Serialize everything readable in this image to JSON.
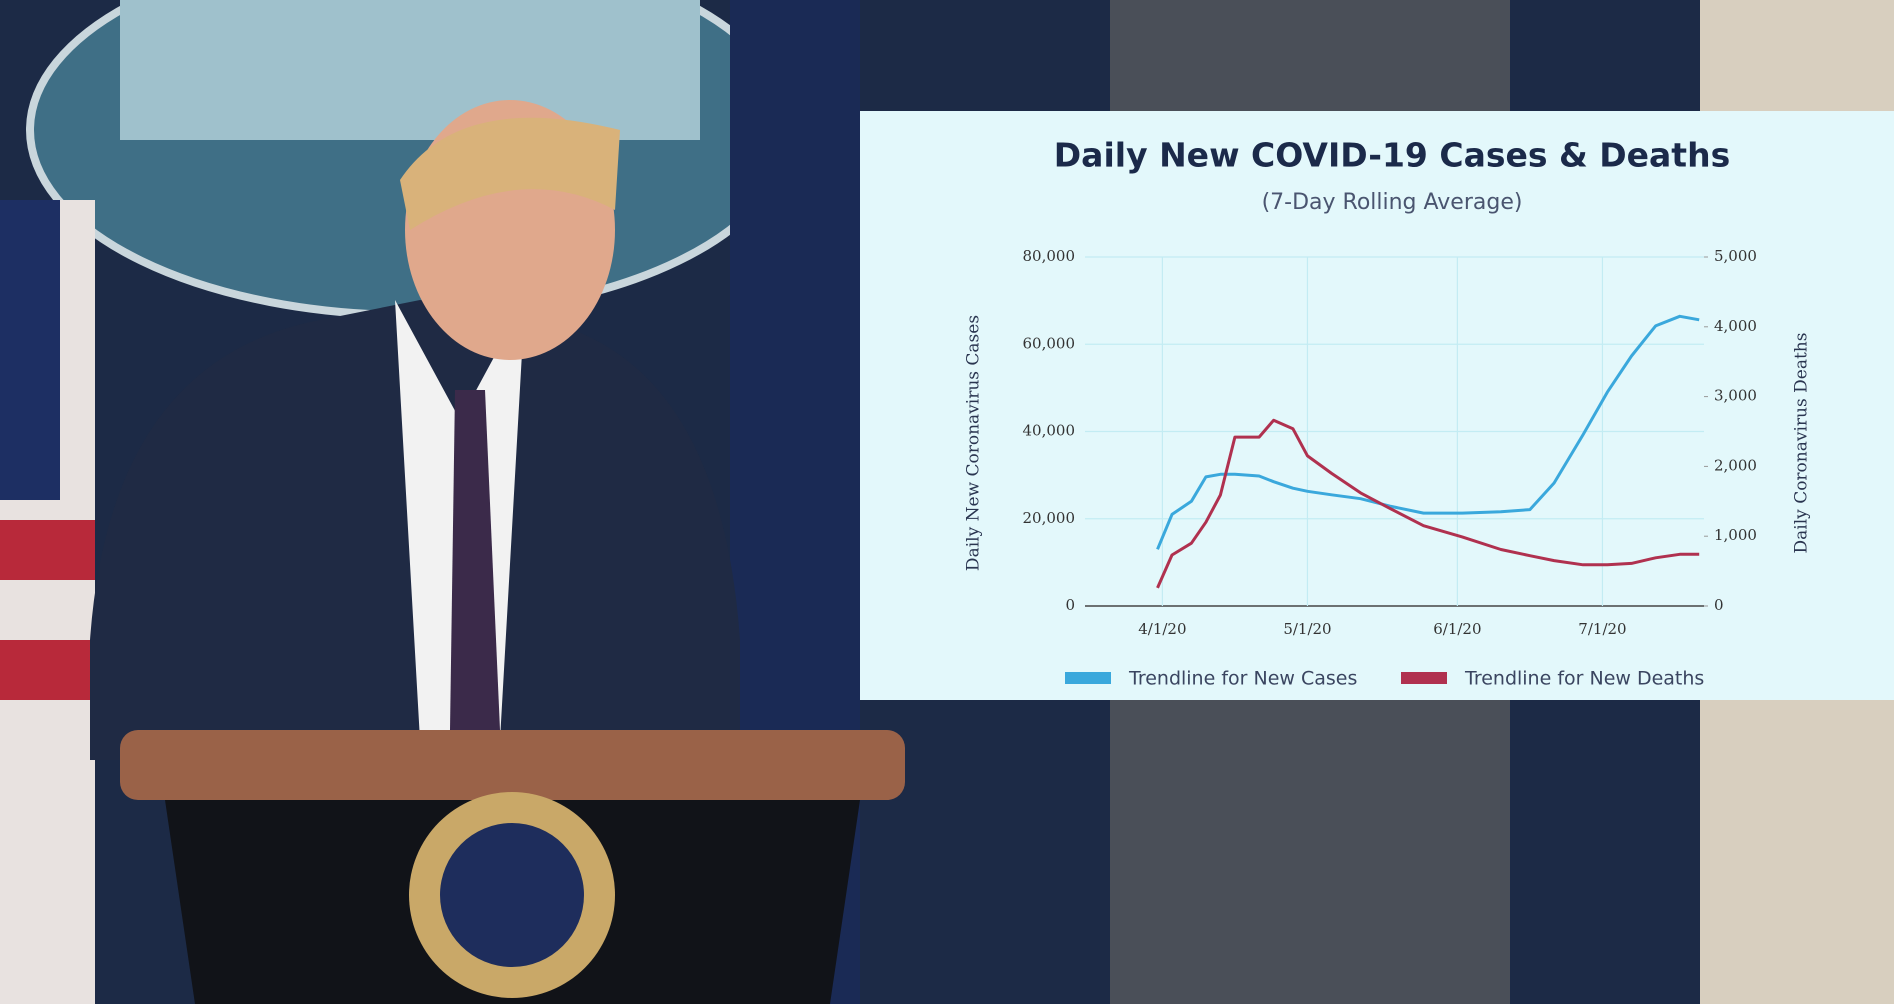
{
  "chart_data": {
    "type": "line",
    "title": "Daily New COVID-19 Cases & Deaths",
    "subtitle": "(7-Day Rolling Average)",
    "y_label": "Daily New Coronavirus Cases",
    "y2_label": "Daily Coronavirus Deaths",
    "x": [
      "3/31/20",
      "4/3/20",
      "4/7/20",
      "4/10/20",
      "4/13/20",
      "4/16/20",
      "4/21/20",
      "4/24/20",
      "4/28/20",
      "5/1/20",
      "5/6/20",
      "5/12/20",
      "5/18/20",
      "5/25/20",
      "6/2/20",
      "6/10/20",
      "6/16/20",
      "6/21/20",
      "6/27/20",
      "7/2/20",
      "7/7/20",
      "7/12/20",
      "7/17/20",
      "7/21/20"
    ],
    "series": [
      {
        "name": "Trendline for New Cases",
        "color": "#3aa8dc",
        "values": [
          13000,
          21000,
          24000,
          29600,
          30200,
          30200,
          29800,
          28500,
          27000,
          26300,
          25500,
          24600,
          22900,
          21300,
          21300,
          21600,
          22100,
          28200,
          39300,
          49000,
          57300,
          64200,
          66400,
          65600
        ]
      },
      {
        "name": "Trendline for New Deaths",
        "color": "#b0314f",
        "axis": "y2",
        "values": [
          260,
          730,
          900,
          1200,
          1590,
          2420,
          2420,
          2660,
          2540,
          2150,
          1900,
          1620,
          1400,
          1150,
          990,
          810,
          720,
          650,
          590,
          590,
          610,
          690,
          740,
          740
        ]
      }
    ],
    "xlim": [
      "3/16/20",
      "7/22/20"
    ],
    "xticks": [
      "4/1/20",
      "5/1/20",
      "6/1/20",
      "7/1/20"
    ],
    "ylim": [
      0,
      80000
    ],
    "yticks": [
      0,
      {
        "value": 20000,
        "label": "20,000"
      },
      {
        "value": 40000,
        "label": "40,000"
      },
      {
        "value": 60000,
        "label": "60,000"
      },
      {
        "value": 80000,
        "label": "80,000"
      }
    ],
    "y2lim": [
      0,
      5000
    ],
    "y2ticks": [
      0,
      {
        "value": 1000,
        "label": "1,000"
      },
      {
        "value": 2000,
        "label": "2,000"
      },
      {
        "value": 3000,
        "label": "3,000"
      },
      {
        "value": 4000,
        "label": "4,000"
      },
      {
        "value": 5000,
        "label": "5,000"
      }
    ],
    "grid": true
  }
}
